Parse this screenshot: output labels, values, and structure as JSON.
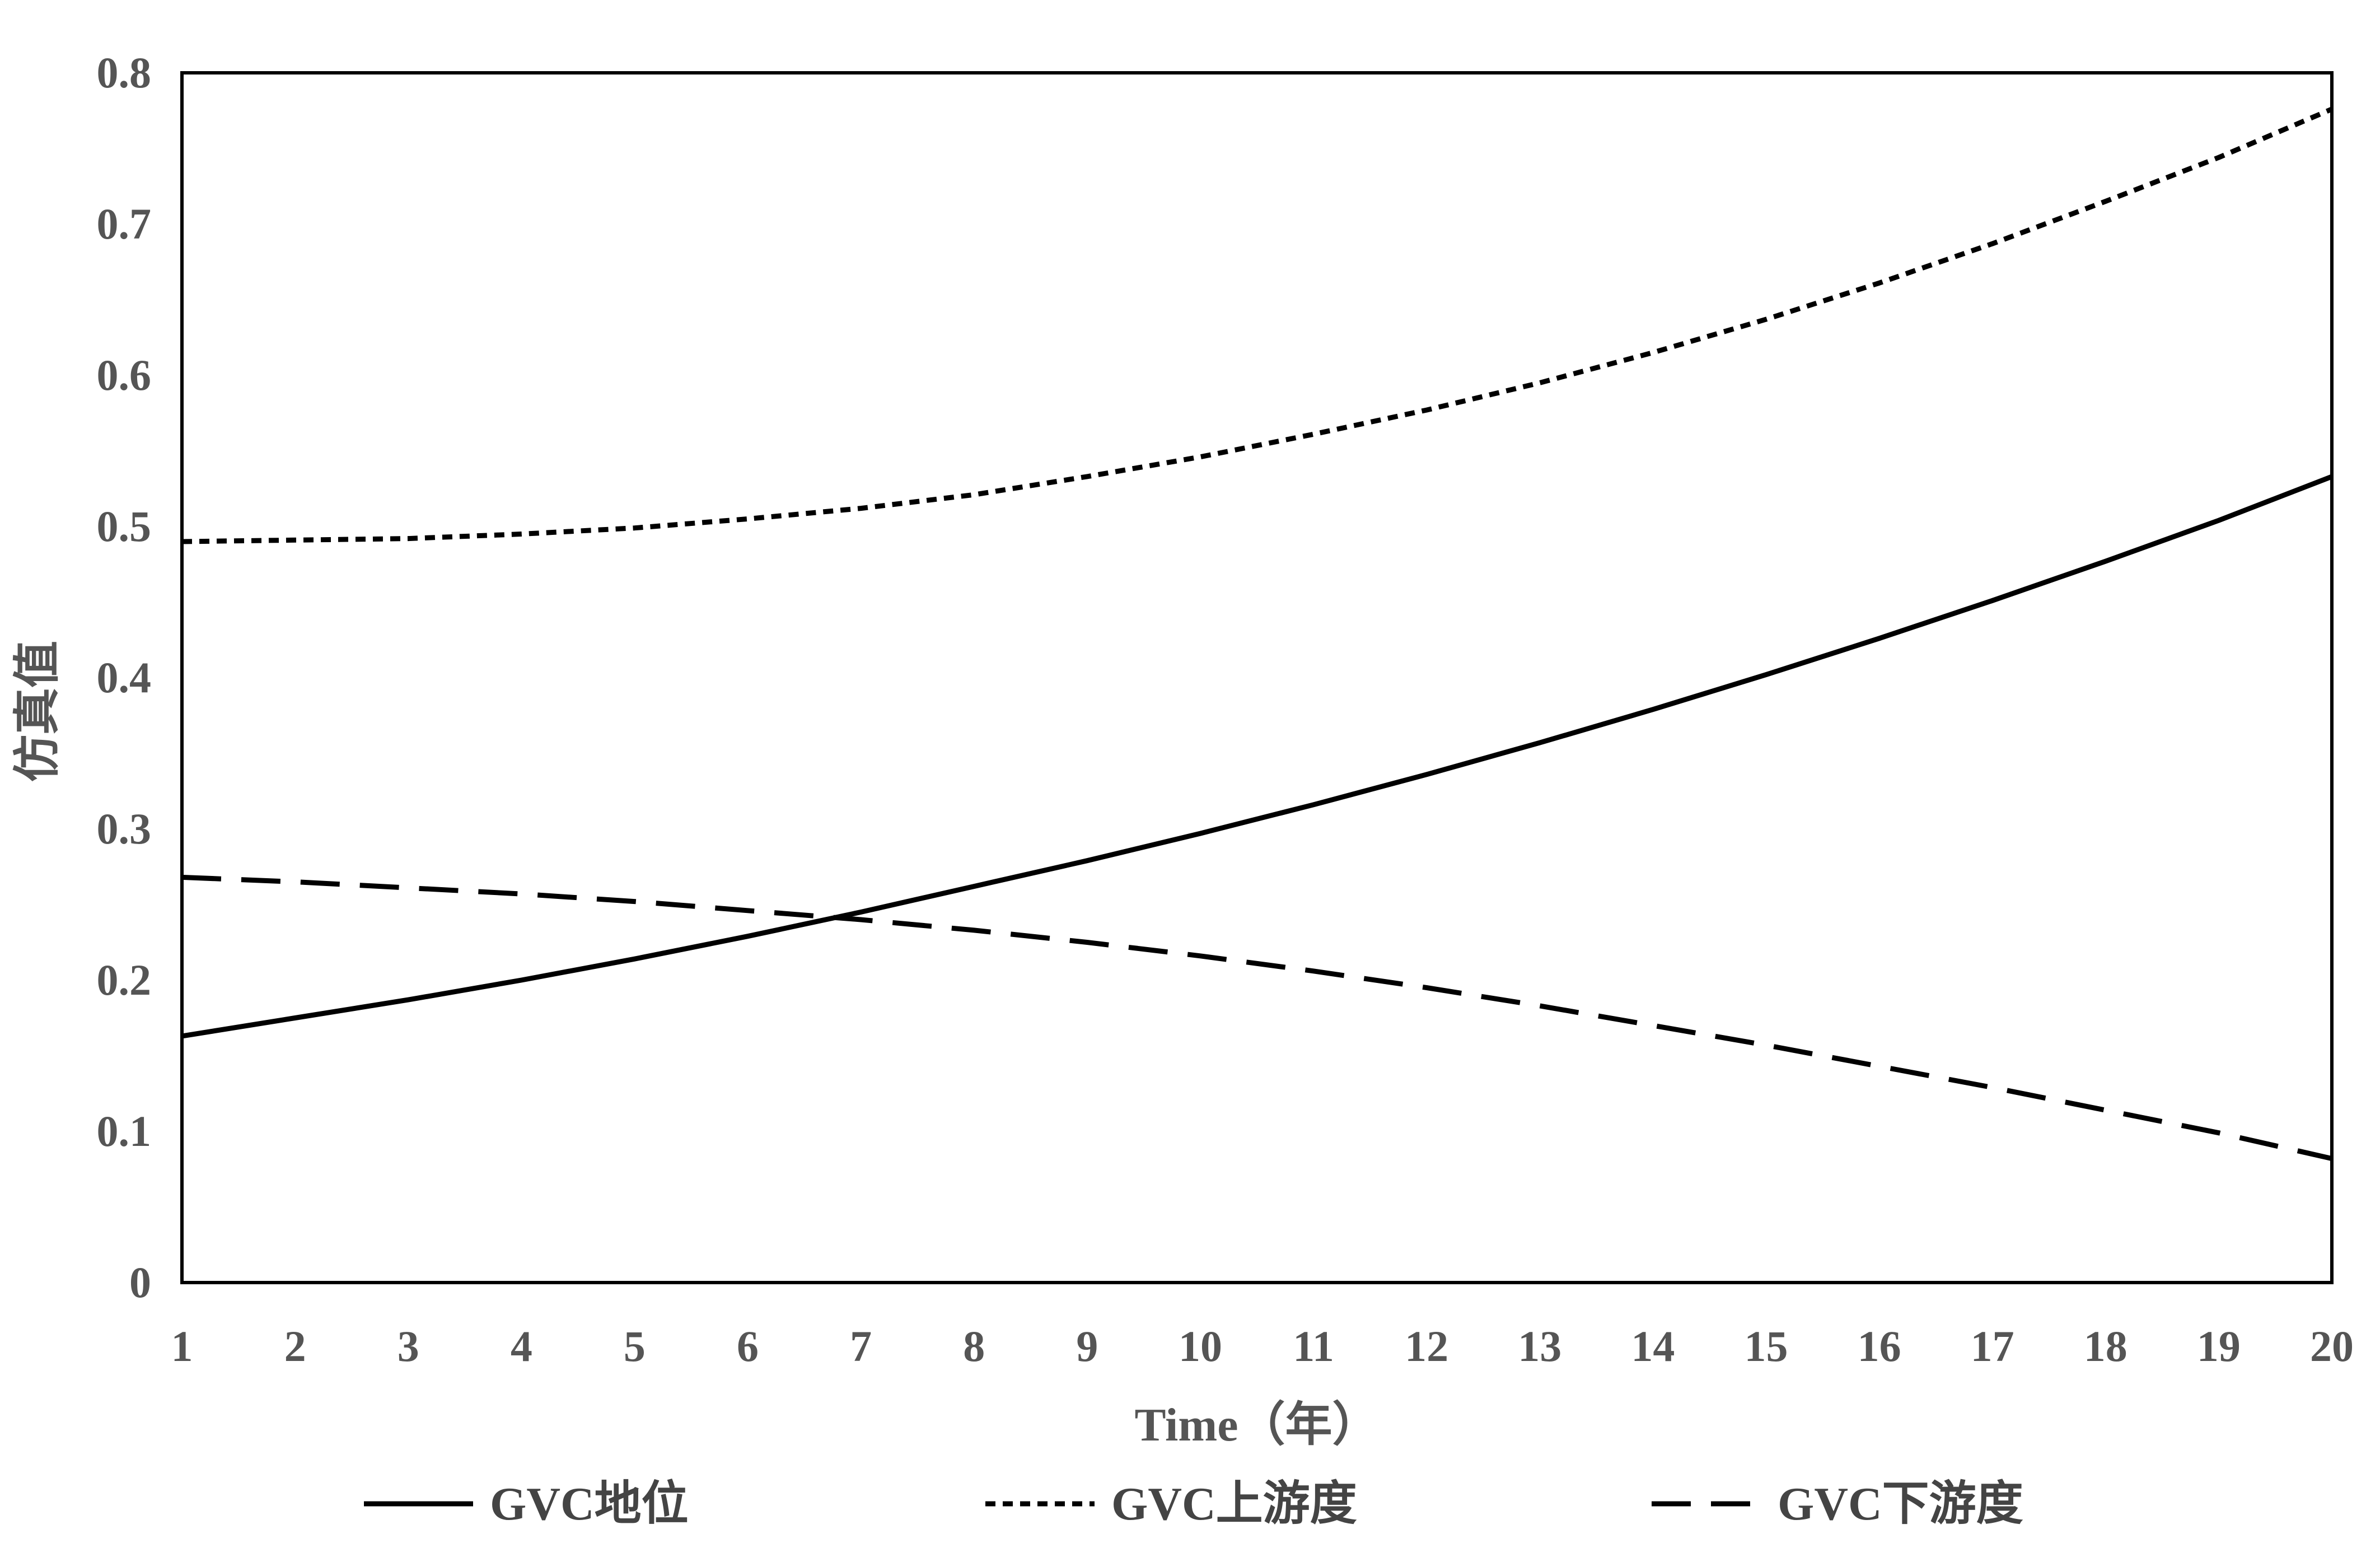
{
  "chart_data": {
    "type": "line",
    "title": "",
    "xlabel": "Time（年）",
    "ylabel": "仿真值",
    "x": [
      1,
      2,
      3,
      4,
      5,
      6,
      7,
      8,
      9,
      10,
      11,
      12,
      13,
      14,
      15,
      16,
      17,
      18,
      19,
      20
    ],
    "xticks": [
      "1",
      "2",
      "3",
      "4",
      "5",
      "6",
      "7",
      "8",
      "9",
      "10",
      "11",
      "12",
      "13",
      "14",
      "15",
      "16",
      "17",
      "18",
      "19",
      "20"
    ],
    "xlim": [
      1,
      20
    ],
    "ylim": [
      0,
      0.8
    ],
    "yticks": [
      "0",
      "0.1",
      "0.2",
      "0.3",
      "0.4",
      "0.5",
      "0.6",
      "0.7",
      "0.8"
    ],
    "grid": false,
    "legend_position": "bottom",
    "series": [
      {
        "name": "GVC地位",
        "style": "solid",
        "color": "#000000",
        "values": [
          0.163,
          0.175,
          0.187,
          0.2,
          0.214,
          0.229,
          0.245,
          0.262,
          0.279,
          0.297,
          0.316,
          0.336,
          0.357,
          0.379,
          0.402,
          0.426,
          0.451,
          0.477,
          0.504,
          0.533
        ]
      },
      {
        "name": "GVC上游度",
        "style": "short-dash",
        "color": "#000000",
        "values": [
          0.49,
          0.491,
          0.492,
          0.495,
          0.499,
          0.505,
          0.512,
          0.521,
          0.533,
          0.546,
          0.561,
          0.577,
          0.595,
          0.615,
          0.637,
          0.661,
          0.687,
          0.715,
          0.744,
          0.776
        ]
      },
      {
        "name": "GVC下游度",
        "style": "long-dash",
        "color": "#000000",
        "values": [
          0.268,
          0.265,
          0.261,
          0.257,
          0.252,
          0.246,
          0.24,
          0.233,
          0.225,
          0.216,
          0.206,
          0.195,
          0.183,
          0.17,
          0.157,
          0.143,
          0.129,
          0.114,
          0.099,
          0.082
        ]
      }
    ]
  }
}
